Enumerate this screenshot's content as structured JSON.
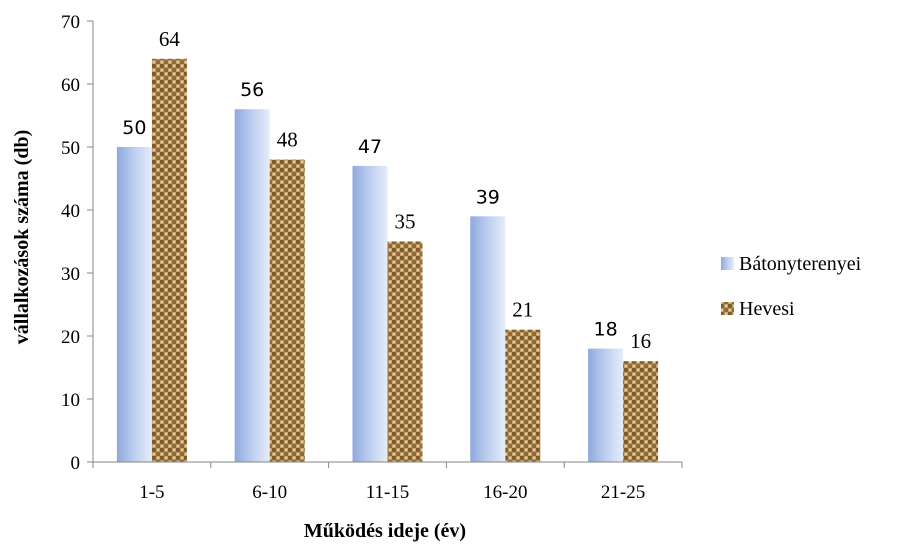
{
  "chart_data": {
    "type": "bar",
    "categories": [
      "1-5",
      "6-10",
      "11-15",
      "16-20",
      "21-25"
    ],
    "series": [
      {
        "name": "Bátonyterenyei",
        "values": [
          50,
          56,
          47,
          39,
          18
        ],
        "color": "#b4c6ea",
        "fill": "gradient-blue"
      },
      {
        "name": "Hevesi",
        "values": [
          64,
          48,
          35,
          21,
          16
        ],
        "color": "#b08a4e",
        "fill": "burlap-texture"
      }
    ],
    "xlabel": "Működés ideje (év)",
    "ylabel": "vállalkozások száma (db)",
    "ylim": [
      0,
      70
    ],
    "yticks": [
      0,
      10,
      20,
      30,
      40,
      50,
      60,
      70
    ],
    "grid": false,
    "legend_position": "right"
  }
}
